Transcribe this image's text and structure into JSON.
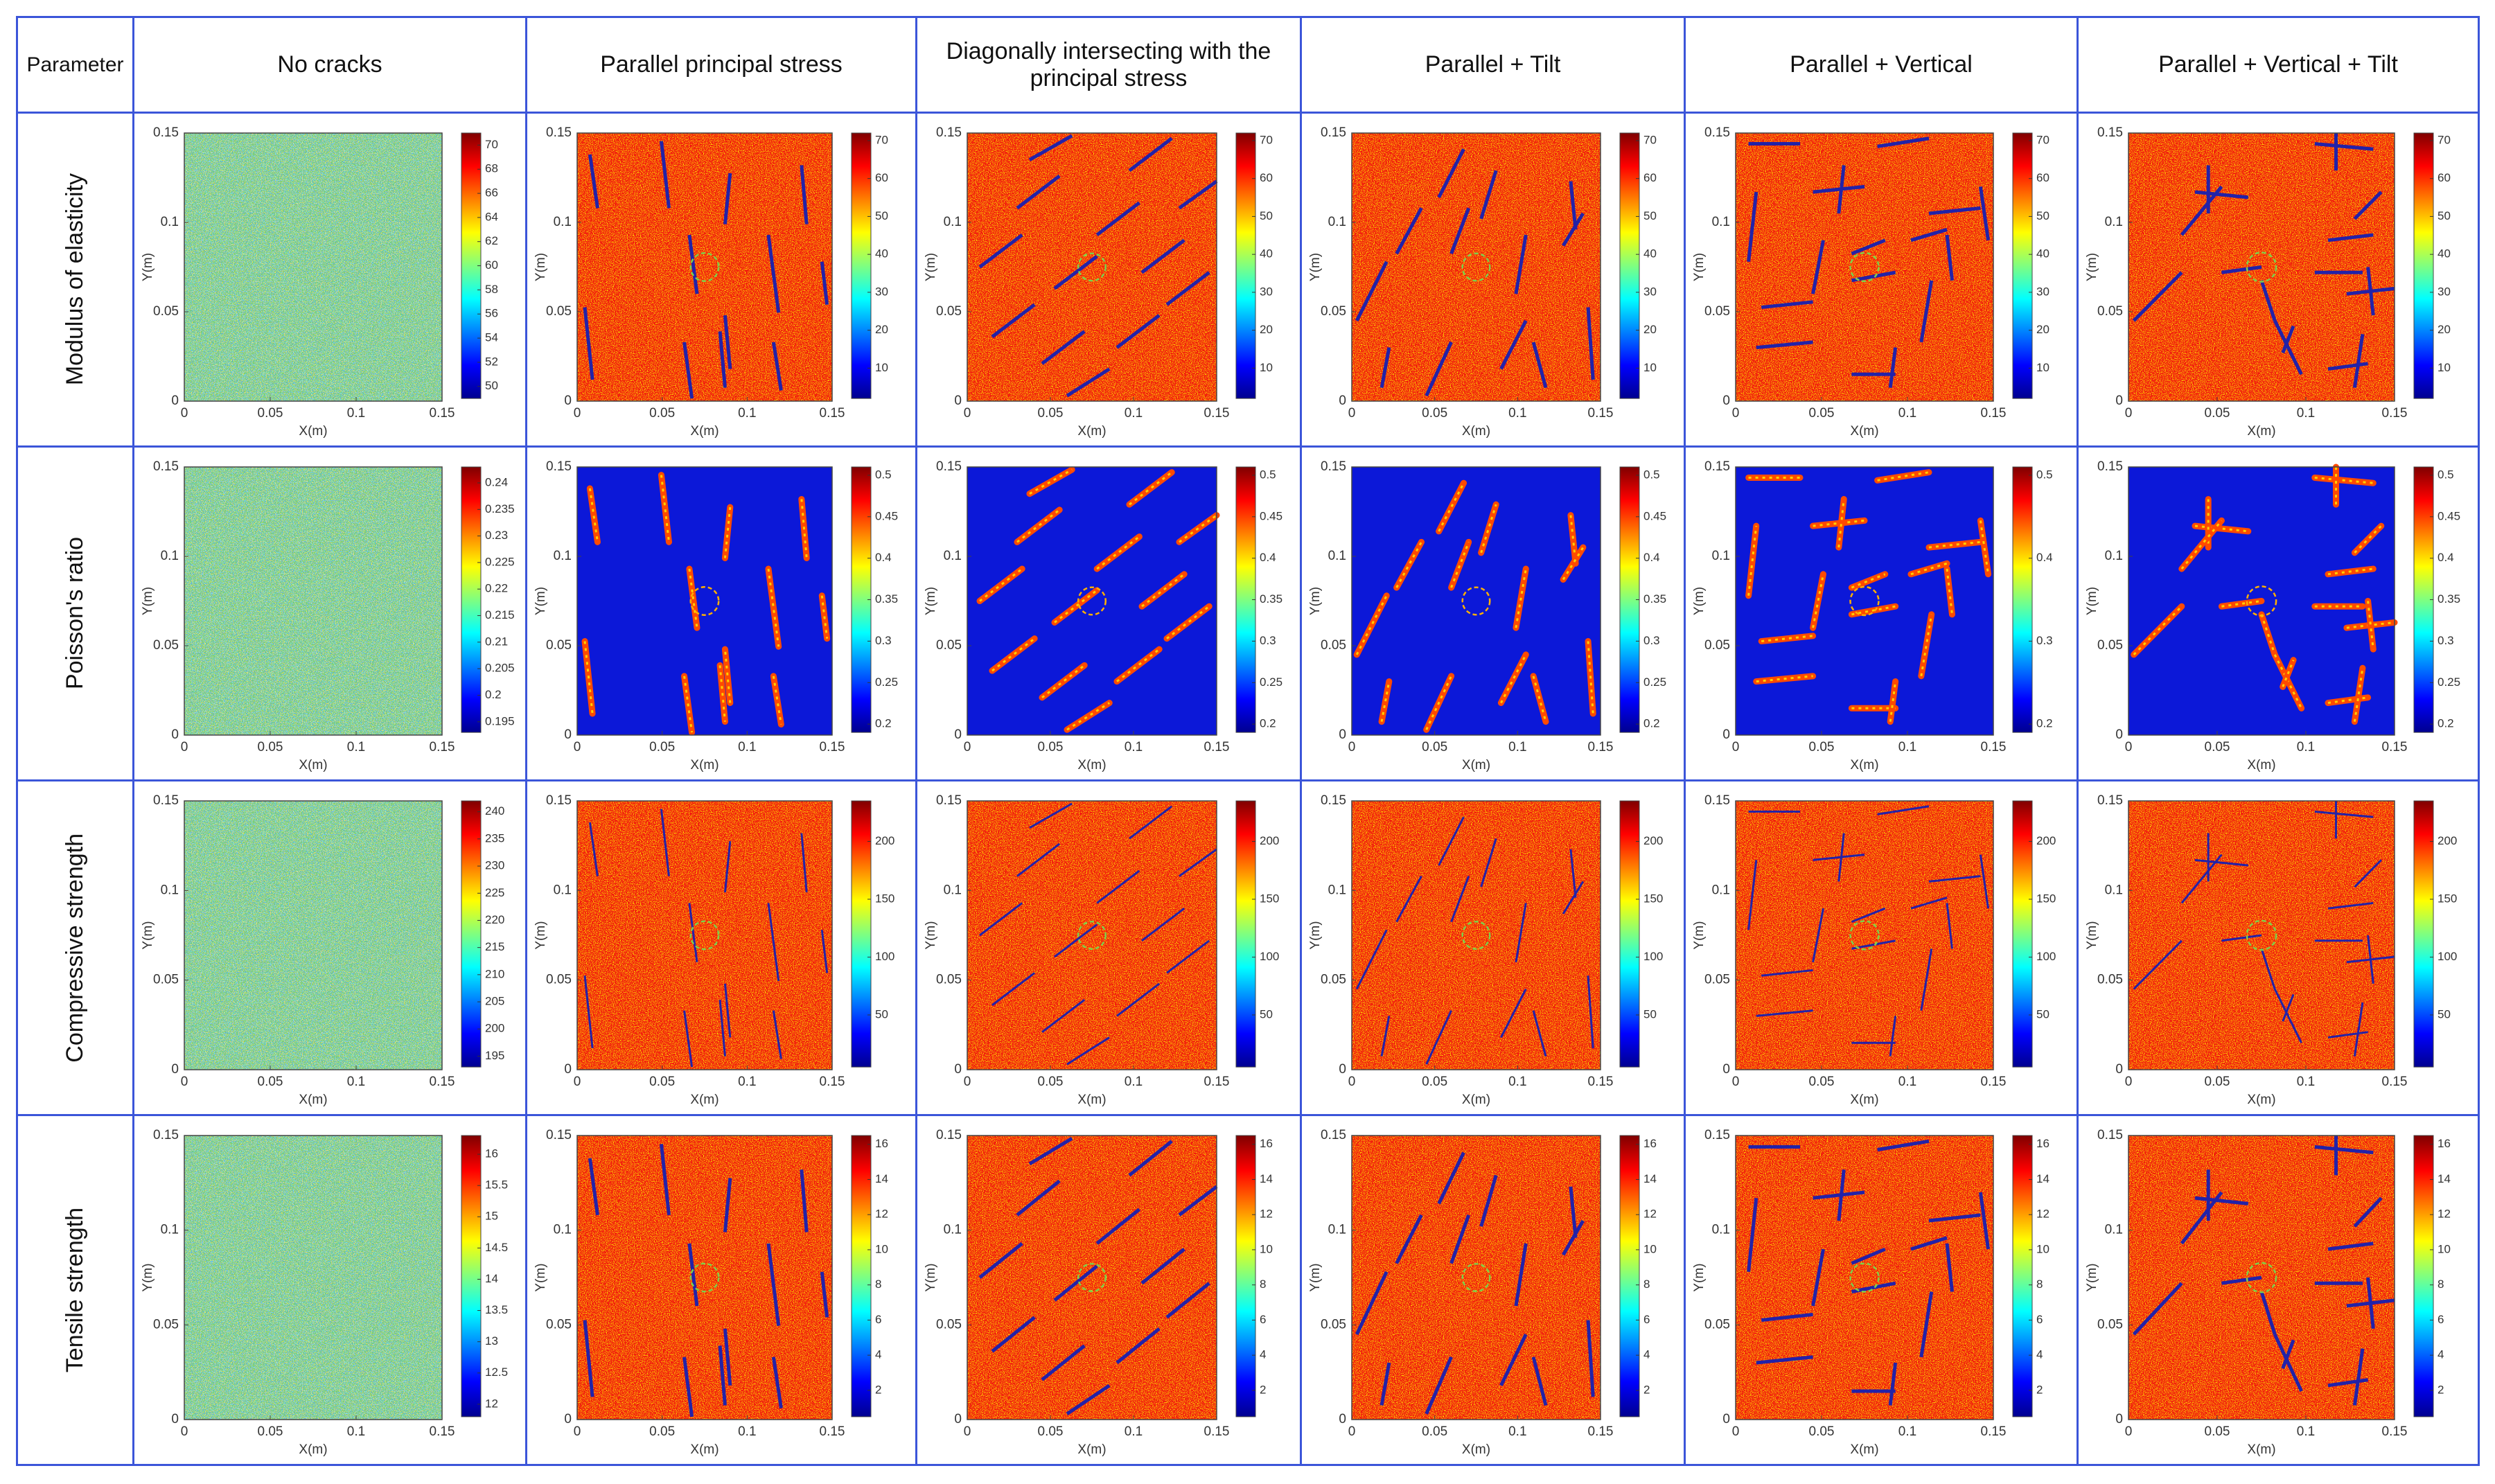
{
  "header": [
    "Parameter",
    "No cracks",
    "Parallel principal stress",
    "Diagonally intersecting with the principal stress",
    "Parallel + Tilt",
    "Parallel + Vertical",
    "Parallel + Vertical + Tilt"
  ],
  "axes": {
    "xlabel": "X(m)",
    "ylabel": "Y(m)",
    "xlim": [
      0,
      0.15
    ],
    "ylim": [
      0,
      0.15
    ],
    "xticks": [
      0,
      0.05,
      0.1,
      0.15
    ],
    "yticks": [
      0,
      0.05,
      0.1,
      0.15
    ]
  },
  "rows": [
    {
      "label": "Modulus of elasticity",
      "plots": [
        {
          "clim": [
            49,
            71
          ],
          "colorbar_ticks": [
            50,
            52,
            54,
            56,
            58,
            60,
            62,
            64,
            66,
            68,
            70
          ]
        },
        {
          "clim": [
            2,
            72
          ],
          "colorbar_ticks": [
            10,
            20,
            30,
            40,
            50,
            60,
            70
          ]
        },
        {
          "clim": [
            2,
            72
          ],
          "colorbar_ticks": [
            10,
            20,
            30,
            40,
            50,
            60,
            70
          ]
        },
        {
          "clim": [
            2,
            72
          ],
          "colorbar_ticks": [
            10,
            20,
            30,
            40,
            50,
            60,
            70
          ]
        },
        {
          "clim": [
            2,
            72
          ],
          "colorbar_ticks": [
            10,
            20,
            30,
            40,
            50,
            60,
            70
          ]
        },
        {
          "clim": [
            2,
            72
          ],
          "colorbar_ticks": [
            10,
            20,
            30,
            40,
            50,
            60,
            70
          ]
        }
      ]
    },
    {
      "label": "Poisson's ratio",
      "plots": [
        {
          "clim": [
            0.193,
            0.243
          ],
          "colorbar_ticks": [
            0.195,
            0.2,
            0.205,
            0.21,
            0.215,
            0.22,
            0.225,
            0.23,
            0.235,
            0.24
          ]
        },
        {
          "clim": [
            0.19,
            0.51
          ],
          "colorbar_ticks": [
            0.2,
            0.25,
            0.3,
            0.35,
            0.4,
            0.45,
            0.5
          ]
        },
        {
          "clim": [
            0.19,
            0.51
          ],
          "colorbar_ticks": [
            0.2,
            0.25,
            0.3,
            0.35,
            0.4,
            0.45,
            0.5
          ]
        },
        {
          "clim": [
            0.19,
            0.51
          ],
          "colorbar_ticks": [
            0.2,
            0.25,
            0.3,
            0.35,
            0.4,
            0.45,
            0.5
          ]
        },
        {
          "clim": [
            0.19,
            0.51
          ],
          "colorbar_ticks": [
            0.2,
            0.3,
            0.4,
            0.5
          ]
        },
        {
          "clim": [
            0.19,
            0.51
          ],
          "colorbar_ticks": [
            0.2,
            0.25,
            0.3,
            0.35,
            0.4,
            0.45,
            0.5
          ]
        }
      ]
    },
    {
      "label": "Compressive strength",
      "plots": [
        {
          "clim": [
            193,
            242
          ],
          "colorbar_ticks": [
            195,
            200,
            205,
            210,
            215,
            220,
            225,
            230,
            235,
            240
          ]
        },
        {
          "clim": [
            5,
            235
          ],
          "colorbar_ticks": [
            50,
            100,
            150,
            200
          ]
        },
        {
          "clim": [
            5,
            235
          ],
          "colorbar_ticks": [
            50,
            100,
            150,
            200
          ]
        },
        {
          "clim": [
            5,
            235
          ],
          "colorbar_ticks": [
            50,
            100,
            150,
            200
          ]
        },
        {
          "clim": [
            5,
            235
          ],
          "colorbar_ticks": [
            50,
            100,
            150,
            200
          ]
        },
        {
          "clim": [
            5,
            235
          ],
          "colorbar_ticks": [
            50,
            100,
            150,
            200
          ]
        }
      ]
    },
    {
      "label": "Tensile strength",
      "plots": [
        {
          "clim": [
            11.8,
            16.3
          ],
          "colorbar_ticks": [
            12,
            12.5,
            13,
            13.5,
            14,
            14.5,
            15,
            15.5,
            16
          ]
        },
        {
          "clim": [
            0.5,
            16.5
          ],
          "colorbar_ticks": [
            2,
            4,
            6,
            8,
            10,
            12,
            14,
            16
          ]
        },
        {
          "clim": [
            0.5,
            16.5
          ],
          "colorbar_ticks": [
            2,
            4,
            6,
            8,
            10,
            12,
            14,
            16
          ]
        },
        {
          "clim": [
            0.5,
            16.5
          ],
          "colorbar_ticks": [
            2,
            4,
            6,
            8,
            10,
            12,
            14,
            16
          ]
        },
        {
          "clim": [
            0.5,
            16.5
          ],
          "colorbar_ticks": [
            2,
            4,
            6,
            8,
            10,
            12,
            14,
            16
          ]
        },
        {
          "clim": [
            0.5,
            16.5
          ],
          "colorbar_ticks": [
            2,
            4,
            6,
            8,
            10,
            12,
            14,
            16
          ]
        }
      ]
    }
  ]
}
